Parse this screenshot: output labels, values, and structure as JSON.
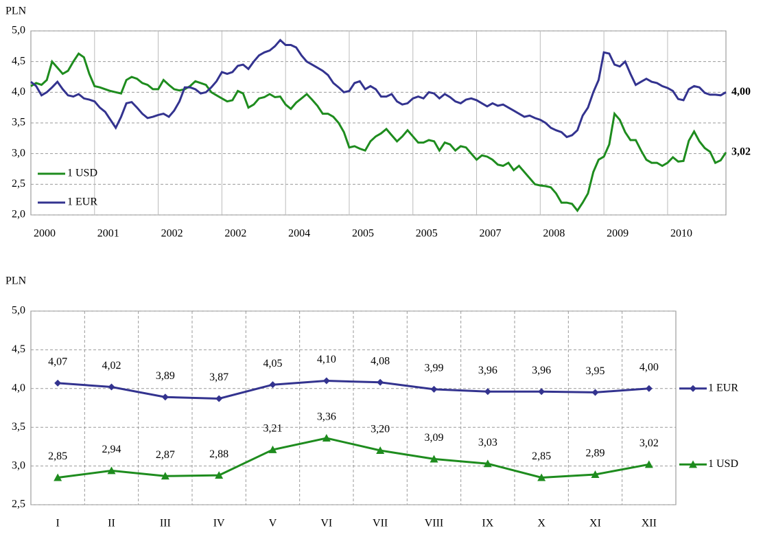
{
  "chart_data": [
    {
      "type": "line",
      "ylabel": "PLN",
      "legend": "lower left",
      "grid": true,
      "categories": [
        "2000",
        null,
        null,
        null,
        null,
        null,
        null,
        null,
        null,
        null,
        null,
        null,
        "2001",
        null,
        null,
        null,
        null,
        null,
        null,
        null,
        null,
        null,
        null,
        null,
        "2002",
        null,
        null,
        null,
        null,
        null,
        null,
        null,
        null,
        null,
        null,
        null,
        "2002",
        null,
        null,
        null,
        null,
        null,
        null,
        null,
        null,
        null,
        null,
        null,
        "2004",
        null,
        null,
        null,
        null,
        null,
        null,
        null,
        null,
        null,
        null,
        null,
        "2005",
        null,
        null,
        null,
        null,
        null,
        null,
        null,
        null,
        null,
        null,
        null,
        "2005",
        null,
        null,
        null,
        null,
        null,
        null,
        null,
        null,
        null,
        null,
        null,
        "2007",
        null,
        null,
        null,
        null,
        null,
        null,
        null,
        null,
        null,
        null,
        null,
        "2008",
        null,
        null,
        null,
        null,
        null,
        null,
        null,
        null,
        null,
        null,
        null,
        "2009",
        null,
        null,
        null,
        null,
        null,
        null,
        null,
        null,
        null,
        null,
        null,
        "2010",
        null,
        null,
        null,
        null,
        null,
        null,
        null,
        null,
        null,
        null,
        null
      ],
      "series": [
        {
          "name": "1 USD",
          "color": "#1e8c1e",
          "values": [
            4.1,
            4.15,
            4.12,
            4.2,
            4.5,
            4.4,
            4.3,
            4.35,
            4.5,
            4.63,
            4.57,
            4.3,
            4.1,
            4.08,
            4.05,
            4.02,
            4.0,
            3.98,
            4.2,
            4.25,
            4.22,
            4.15,
            4.12,
            4.05,
            4.05,
            4.2,
            4.12,
            4.05,
            4.03,
            4.05,
            4.1,
            4.18,
            4.15,
            4.12,
            4.0,
            3.95,
            3.9,
            3.85,
            3.87,
            4.02,
            3.98,
            3.75,
            3.8,
            3.9,
            3.92,
            3.97,
            3.92,
            3.93,
            3.8,
            3.73,
            3.83,
            3.9,
            3.97,
            3.88,
            3.78,
            3.65,
            3.65,
            3.6,
            3.5,
            3.35,
            3.1,
            3.12,
            3.08,
            3.05,
            3.2,
            3.28,
            3.33,
            3.4,
            3.3,
            3.2,
            3.28,
            3.38,
            3.28,
            3.18,
            3.18,
            3.22,
            3.2,
            3.05,
            3.18,
            3.15,
            3.05,
            3.12,
            3.1,
            3.0,
            2.9,
            2.97,
            2.95,
            2.9,
            2.82,
            2.8,
            2.85,
            2.73,
            2.8,
            2.7,
            2.6,
            2.5,
            2.48,
            2.47,
            2.45,
            2.35,
            2.2,
            2.2,
            2.18,
            2.07,
            2.2,
            2.35,
            2.7,
            2.9,
            2.95,
            3.15,
            3.65,
            3.55,
            3.35,
            3.22,
            3.22,
            3.05,
            2.9,
            2.85,
            2.85,
            2.8,
            2.85,
            2.94,
            2.87,
            2.88,
            3.21,
            3.36,
            3.2,
            3.09,
            3.03,
            2.85,
            2.89,
            3.02
          ]
        },
        {
          "name": "1 EUR",
          "color": "#33338f",
          "values": [
            4.17,
            4.1,
            3.95,
            4.0,
            4.08,
            4.17,
            4.05,
            3.95,
            3.93,
            3.97,
            3.9,
            3.88,
            3.85,
            3.75,
            3.68,
            3.55,
            3.42,
            3.6,
            3.82,
            3.84,
            3.75,
            3.65,
            3.58,
            3.6,
            3.63,
            3.65,
            3.6,
            3.7,
            3.85,
            4.08,
            4.08,
            4.05,
            3.98,
            4.0,
            4.08,
            4.18,
            4.33,
            4.3,
            4.33,
            4.43,
            4.45,
            4.38,
            4.5,
            4.6,
            4.65,
            4.68,
            4.75,
            4.85,
            4.77,
            4.77,
            4.73,
            4.6,
            4.5,
            4.45,
            4.4,
            4.35,
            4.28,
            4.15,
            4.08,
            4.0,
            4.02,
            4.15,
            4.18,
            4.05,
            4.1,
            4.05,
            3.93,
            3.93,
            3.97,
            3.85,
            3.8,
            3.82,
            3.9,
            3.93,
            3.9,
            4.0,
            3.98,
            3.9,
            3.97,
            3.92,
            3.85,
            3.82,
            3.88,
            3.9,
            3.87,
            3.82,
            3.77,
            3.82,
            3.78,
            3.8,
            3.75,
            3.7,
            3.65,
            3.6,
            3.62,
            3.58,
            3.55,
            3.5,
            3.42,
            3.38,
            3.35,
            3.27,
            3.3,
            3.38,
            3.62,
            3.75,
            4.0,
            4.2,
            4.65,
            4.63,
            4.45,
            4.42,
            4.5,
            4.3,
            4.12,
            4.17,
            4.22,
            4.17,
            4.15,
            4.1,
            4.07,
            4.02,
            3.89,
            3.87,
            4.05,
            4.1,
            4.08,
            3.99,
            3.96,
            3.96,
            3.95,
            4.0
          ]
        }
      ],
      "annotations": [
        {
          "text": "4,00",
          "value": 4.0
        },
        {
          "text": "3,02",
          "value": 3.02
        }
      ],
      "ylim": [
        2.0,
        5.0
      ],
      "yticks": [
        {
          "value": 2.0,
          "label": "2,0"
        },
        {
          "value": 2.5,
          "label": "2,5"
        },
        {
          "value": 3.0,
          "label": "3,0"
        },
        {
          "value": 3.5,
          "label": "3,5"
        },
        {
          "value": 4.0,
          "label": "4,0"
        },
        {
          "value": 4.5,
          "label": "4,5"
        },
        {
          "value": 5.0,
          "label": "5,0"
        }
      ]
    },
    {
      "type": "line",
      "ylabel": "PLN",
      "legend": "right",
      "grid": true,
      "markers": true,
      "categories": [
        "I",
        "II",
        "III",
        "IV",
        "V",
        "VI",
        "VII",
        "VIII",
        "IX",
        "X",
        "XI",
        "XII"
      ],
      "series": [
        {
          "name": "1 EUR",
          "color": "#33338f",
          "marker": "diamond",
          "values": [
            4.07,
            4.02,
            3.89,
            3.87,
            4.05,
            4.1,
            4.08,
            3.99,
            3.96,
            3.96,
            3.95,
            4.0
          ],
          "value_labels": [
            "4,07",
            "4,02",
            "3,89",
            "3,87",
            "4,05",
            "4,10",
            "4,08",
            "3,99",
            "3,96",
            "3,96",
            "3,95",
            "4,00"
          ]
        },
        {
          "name": "1 USD",
          "color": "#1e8c1e",
          "marker": "triangle",
          "values": [
            2.85,
            2.94,
            2.87,
            2.88,
            3.21,
            3.36,
            3.2,
            3.09,
            3.03,
            2.85,
            2.89,
            3.02
          ],
          "value_labels": [
            "2,85",
            "2,94",
            "2,87",
            "2,88",
            "3,21",
            "3,36",
            "3,20",
            "3,09",
            "3,03",
            "2,85",
            "2,89",
            "3,02"
          ]
        }
      ],
      "ylim": [
        2.5,
        5.0
      ],
      "yticks": [
        {
          "value": 2.5,
          "label": "2,5"
        },
        {
          "value": 3.0,
          "label": "3,0"
        },
        {
          "value": 3.5,
          "label": "3,5"
        },
        {
          "value": 4.0,
          "label": "4,0"
        },
        {
          "value": 4.5,
          "label": "4,5"
        },
        {
          "value": 5.0,
          "label": "5,0"
        }
      ]
    }
  ]
}
